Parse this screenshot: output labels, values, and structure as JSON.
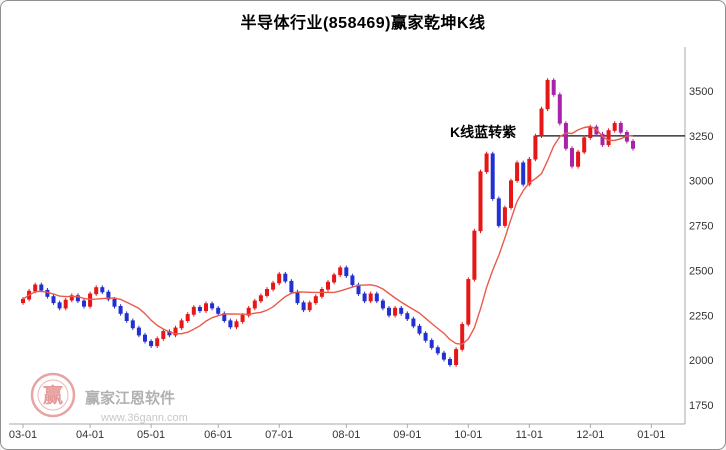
{
  "chart_data": {
    "type": "candlestick",
    "title": "半导体行业(858469)赢家乾坤K线",
    "xlabel": "",
    "ylabel": "",
    "x_tick_labels": [
      "03-01",
      "04-01",
      "05-01",
      "06-01",
      "07-01",
      "08-01",
      "09-01",
      "10-01",
      "11-01",
      "12-01",
      "01-01"
    ],
    "x_tick_indices": [
      0,
      11,
      21,
      32,
      42,
      53,
      63,
      73,
      83,
      93,
      103
    ],
    "y_tick_values": [
      3500,
      3250,
      3000,
      2750,
      2500,
      2250,
      2000,
      1750
    ],
    "ylim": [
      1700,
      3650
    ],
    "open_first": 2320,
    "closes": [
      2340,
      2385,
      2420,
      2390,
      2355,
      2320,
      2290,
      2335,
      2360,
      2330,
      2300,
      2370,
      2405,
      2380,
      2340,
      2300,
      2260,
      2220,
      2180,
      2140,
      2105,
      2080,
      2120,
      2160,
      2140,
      2180,
      2220,
      2255,
      2295,
      2275,
      2315,
      2290,
      2260,
      2220,
      2185,
      2215,
      2250,
      2290,
      2330,
      2360,
      2395,
      2430,
      2480,
      2440,
      2380,
      2320,
      2280,
      2320,
      2355,
      2395,
      2435,
      2475,
      2515,
      2470,
      2420,
      2370,
      2330,
      2370,
      2330,
      2290,
      2250,
      2290,
      2260,
      2230,
      2190,
      2150,
      2110,
      2070,
      2040,
      2005,
      1975,
      2060,
      2200,
      2450,
      2720,
      3050,
      3150,
      2900,
      2750,
      2850,
      3000,
      3100,
      2980,
      3120,
      3250,
      3400,
      3560,
      3480,
      3320,
      3180,
      3080,
      3160,
      3240,
      3300,
      3260,
      3200,
      3280,
      3320,
      3270,
      3220,
      3180
    ],
    "wick": 12,
    "ma_window": 9,
    "purple_from_index": 87,
    "annotation": {
      "text": "K线蓝转紫",
      "index": 70,
      "price": 3265
    },
    "reference_line": {
      "price": 3250,
      "from_index": 84
    },
    "legend": [],
    "grid": false,
    "colors": {
      "up": "#e61717",
      "down_blue": "#2230d2",
      "down_purple": "#a822aa",
      "ma": "#ea5a4a",
      "reference": "#111111",
      "axis_text": "#333333",
      "axis_line": "#aaaaaa"
    }
  },
  "watermark": {
    "brand": "赢家江恩软件",
    "url": "www.36gann.com",
    "logo_char": "赢"
  }
}
